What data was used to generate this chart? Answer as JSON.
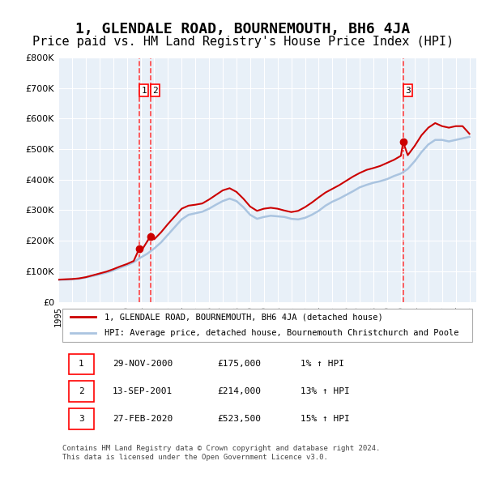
{
  "title": "1, GLENDALE ROAD, BOURNEMOUTH, BH6 4JA",
  "subtitle": "Price paid vs. HM Land Registry's House Price Index (HPI)",
  "title_fontsize": 13,
  "subtitle_fontsize": 11,
  "background_color": "#ffffff",
  "plot_bg_color": "#e8f0f8",
  "grid_color": "#ffffff",
  "ylabel_ticks": [
    "£0",
    "£100K",
    "£200K",
    "£300K",
    "£400K",
    "£500K",
    "£600K",
    "£700K",
    "£800K"
  ],
  "ylabel_values": [
    0,
    100000,
    200000,
    300000,
    400000,
    500000,
    600000,
    700000,
    800000
  ],
  "xmin": 1995.0,
  "xmax": 2025.5,
  "ymin": 0,
  "ymax": 800000,
  "sale_color": "#cc0000",
  "hpi_color": "#aac4e0",
  "purchase_dates": [
    2000.91,
    2001.71,
    2020.16
  ],
  "purchase_prices": [
    175000,
    214000,
    523500
  ],
  "purchase_labels": [
    "1",
    "2",
    "3"
  ],
  "vline_color": "#ff4444",
  "legend_label_sale": "1, GLENDALE ROAD, BOURNEMOUTH, BH6 4JA (detached house)",
  "legend_label_hpi": "HPI: Average price, detached house, Bournemouth Christchurch and Poole",
  "table_rows": [
    [
      "1",
      "29-NOV-2000",
      "£175,000",
      "1% ↑ HPI"
    ],
    [
      "2",
      "13-SEP-2001",
      "£214,000",
      "13% ↑ HPI"
    ],
    [
      "3",
      "27-FEB-2020",
      "£523,500",
      "15% ↑ HPI"
    ]
  ],
  "footnote": "Contains HM Land Registry data © Crown copyright and database right 2024.\nThis data is licensed under the Open Government Licence v3.0.",
  "hpi_x": [
    1995.0,
    1995.5,
    1996.0,
    1996.5,
    1997.0,
    1997.5,
    1998.0,
    1998.5,
    1999.0,
    1999.5,
    2000.0,
    2000.5,
    2001.0,
    2001.5,
    2002.0,
    2002.5,
    2003.0,
    2003.5,
    2004.0,
    2004.5,
    2005.0,
    2005.5,
    2006.0,
    2006.5,
    2007.0,
    2007.5,
    2008.0,
    2008.5,
    2009.0,
    2009.5,
    2010.0,
    2010.5,
    2011.0,
    2011.5,
    2012.0,
    2012.5,
    2013.0,
    2013.5,
    2014.0,
    2014.5,
    2015.0,
    2015.5,
    2016.0,
    2016.5,
    2017.0,
    2017.5,
    2018.0,
    2018.5,
    2019.0,
    2019.5,
    2020.0,
    2020.5,
    2021.0,
    2021.5,
    2022.0,
    2022.5,
    2023.0,
    2023.5,
    2024.0,
    2024.5,
    2025.0
  ],
  "hpi_y": [
    72000,
    73000,
    74000,
    76000,
    80000,
    85000,
    90000,
    96000,
    103000,
    112000,
    120000,
    130000,
    145000,
    158000,
    175000,
    195000,
    220000,
    245000,
    270000,
    285000,
    290000,
    295000,
    305000,
    318000,
    330000,
    338000,
    330000,
    310000,
    285000,
    272000,
    278000,
    282000,
    280000,
    278000,
    272000,
    270000,
    275000,
    285000,
    298000,
    315000,
    328000,
    338000,
    350000,
    362000,
    375000,
    383000,
    390000,
    395000,
    402000,
    412000,
    420000,
    435000,
    460000,
    490000,
    515000,
    530000,
    530000,
    525000,
    530000,
    535000,
    540000
  ],
  "sale_x": [
    1995.0,
    1995.5,
    1996.0,
    1996.5,
    1997.0,
    1997.5,
    1998.0,
    1998.5,
    1999.0,
    1999.5,
    2000.0,
    2000.5,
    2000.91,
    2001.0,
    2001.71,
    2002.0,
    2002.5,
    2003.0,
    2003.5,
    2004.0,
    2004.5,
    2005.0,
    2005.5,
    2006.0,
    2006.5,
    2007.0,
    2007.5,
    2008.0,
    2008.5,
    2009.0,
    2009.5,
    2010.0,
    2010.5,
    2011.0,
    2011.5,
    2012.0,
    2012.5,
    2013.0,
    2013.5,
    2014.0,
    2014.5,
    2015.0,
    2015.5,
    2016.0,
    2016.5,
    2017.0,
    2017.5,
    2018.0,
    2018.5,
    2019.0,
    2019.5,
    2020.0,
    2020.16,
    2020.5,
    2021.0,
    2021.5,
    2022.0,
    2022.5,
    2023.0,
    2023.5,
    2024.0,
    2024.5,
    2025.0
  ],
  "sale_y": [
    73000,
    74000,
    75000,
    77000,
    81000,
    87000,
    93000,
    99000,
    107000,
    116000,
    124000,
    134000,
    175000,
    163000,
    214000,
    205000,
    228000,
    255000,
    280000,
    305000,
    315000,
    318000,
    322000,
    335000,
    350000,
    365000,
    372000,
    360000,
    338000,
    312000,
    298000,
    305000,
    308000,
    305000,
    299000,
    294000,
    298000,
    310000,
    325000,
    342000,
    358000,
    370000,
    382000,
    396000,
    410000,
    422000,
    432000,
    438000,
    445000,
    455000,
    465000,
    478000,
    523500,
    480000,
    510000,
    545000,
    570000,
    585000,
    575000,
    570000,
    575000,
    575000,
    550000
  ]
}
